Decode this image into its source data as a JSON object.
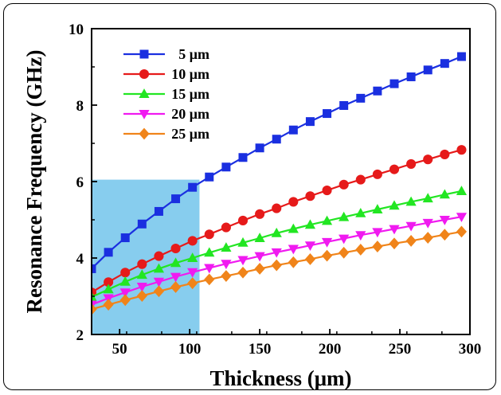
{
  "chart_data": {
    "type": "line",
    "xlabel": "Thickness (μm)",
    "ylabel": "Resonance Frequency (GHz)",
    "xlim": [
      30,
      300
    ],
    "ylim": [
      2,
      10
    ],
    "xticks": [
      "50",
      "100",
      "150",
      "200",
      "250",
      "300"
    ],
    "yticks": [
      "2",
      "4",
      "6",
      "8",
      "10"
    ],
    "grid": false,
    "legend_position": "top-left",
    "highlight_region": {
      "x": [
        30,
        107
      ],
      "y": [
        2,
        6.05
      ],
      "color": "#87cdee"
    },
    "x": [
      30,
      42,
      54,
      66,
      78,
      90,
      102,
      114,
      126,
      138,
      150,
      162,
      174,
      186,
      198,
      210,
      222,
      234,
      246,
      258,
      270,
      282,
      294
    ],
    "series": [
      {
        "name": "5 μm",
        "color": "#1a2fe0",
        "marker": "square",
        "values": [
          3.72,
          4.15,
          4.53,
          4.89,
          5.22,
          5.55,
          5.85,
          6.12,
          6.38,
          6.63,
          6.88,
          7.11,
          7.35,
          7.57,
          7.78,
          7.99,
          8.18,
          8.37,
          8.56,
          8.74,
          8.92,
          9.09,
          9.27
        ]
      },
      {
        "name": "10 μm",
        "color": "#e61a1a",
        "marker": "circle",
        "values": [
          3.1,
          3.37,
          3.62,
          3.84,
          4.05,
          4.25,
          4.45,
          4.62,
          4.8,
          4.98,
          5.15,
          5.3,
          5.47,
          5.62,
          5.77,
          5.92,
          6.05,
          6.19,
          6.32,
          6.46,
          6.58,
          6.71,
          6.83
        ]
      },
      {
        "name": "15 μm",
        "color": "#22e622",
        "marker": "triangle-up",
        "values": [
          2.98,
          3.18,
          3.38,
          3.56,
          3.72,
          3.87,
          4.0,
          4.14,
          4.27,
          4.4,
          4.52,
          4.65,
          4.76,
          4.87,
          4.97,
          5.07,
          5.17,
          5.27,
          5.37,
          5.47,
          5.56,
          5.66,
          5.75
        ]
      },
      {
        "name": "20 μm",
        "color": "#f01af0",
        "marker": "triangle-down",
        "values": [
          2.78,
          2.95,
          3.1,
          3.25,
          3.38,
          3.51,
          3.63,
          3.74,
          3.85,
          3.95,
          4.05,
          4.15,
          4.24,
          4.33,
          4.42,
          4.51,
          4.6,
          4.68,
          4.76,
          4.84,
          4.92,
          5.0,
          5.08
        ]
      },
      {
        "name": "25 μm",
        "color": "#f0841a",
        "marker": "diamond",
        "values": [
          2.66,
          2.78,
          2.9,
          3.01,
          3.13,
          3.24,
          3.34,
          3.44,
          3.53,
          3.62,
          3.72,
          3.81,
          3.89,
          3.97,
          4.06,
          4.14,
          4.22,
          4.3,
          4.38,
          4.45,
          4.53,
          4.61,
          4.69
        ]
      }
    ]
  }
}
